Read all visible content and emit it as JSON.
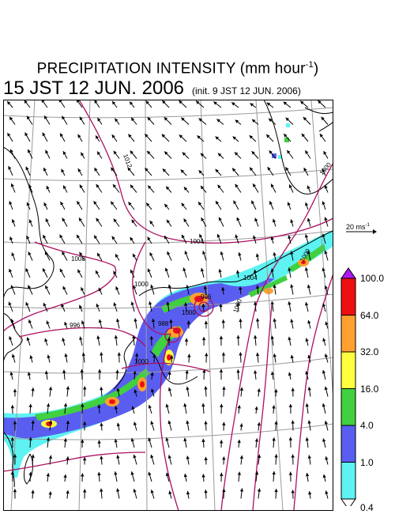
{
  "header": {
    "title_main": "PRECIPITATION INTENSITY (mm hour",
    "title_exp": "-1",
    "title_close": ")",
    "datetime": "15 JST 12 JUN. 2006",
    "init": "(init. 9 JST 12 JUN. 2006)"
  },
  "reference_vector": {
    "label": "20 ms",
    "exp": "-1"
  },
  "colorbar": {
    "levels": [
      "0.4",
      "1.0",
      "4.0",
      "16.0",
      "32.0",
      "64.0",
      "100.0"
    ],
    "colors": [
      "#5ef2f2",
      "#5a5ef0",
      "#40d040",
      "#ffff40",
      "#ffa030",
      "#ee1010",
      "#b018f0"
    ],
    "under_color": "#ffffff"
  },
  "contour_labels": [
    "1012",
    "1008",
    "1004",
    "1000",
    "996",
    "1000",
    "1000",
    "1000",
    "1004",
    "996",
    "1000",
    "1000",
    "988"
  ],
  "colors": {
    "contour": "#aa1060",
    "grid": "#9a9a9a",
    "coast": "#000000",
    "vector": "#000000"
  }
}
